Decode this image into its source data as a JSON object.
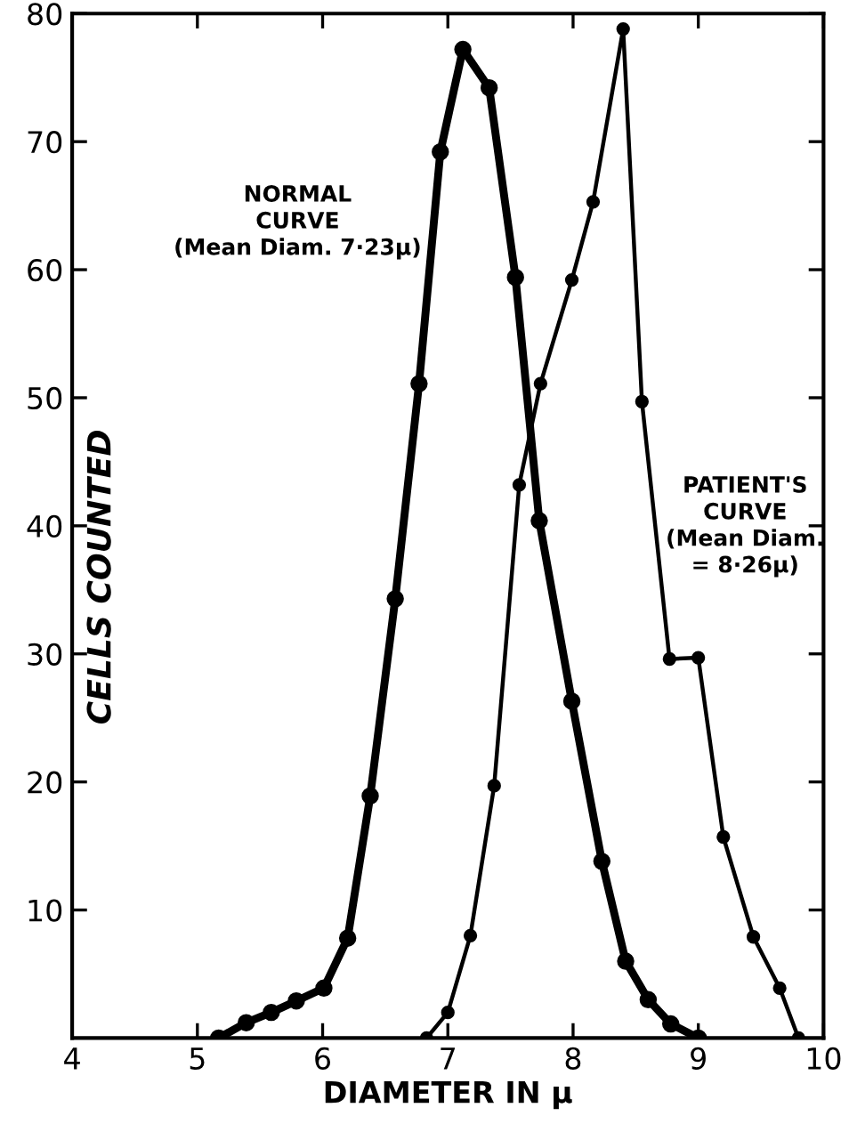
{
  "chart_data": {
    "type": "line",
    "xlabel": "DIAMETER IN μ",
    "ylabel": "CELLS COUNTED",
    "xlim": [
      4,
      10
    ],
    "xticks": [
      4,
      5,
      6,
      7,
      8,
      9,
      10
    ],
    "ylim": [
      0,
      80
    ],
    "yticks": [
      10,
      20,
      30,
      40,
      50,
      60,
      70,
      80
    ],
    "grid": false,
    "legend": false,
    "marker": "circle",
    "line_style": "solid",
    "series": [
      {
        "color": "#000000",
        "x": [
          5.17,
          5.39,
          5.59,
          5.79,
          6.01,
          6.2,
          6.38,
          6.58,
          6.77,
          6.94,
          7.12,
          7.33,
          7.54,
          7.73,
          7.99,
          8.23,
          8.42,
          8.6,
          8.78,
          9.0
        ],
        "values": [
          0,
          1.2,
          2,
          2.9,
          3.9,
          7.8,
          18.9,
          34.3,
          51.1,
          69.2,
          77.2,
          74.2,
          59.4,
          40.4,
          26.3,
          13.8,
          6,
          3,
          1.1,
          0
        ]
      },
      {
        "color": "#000000",
        "x": [
          6.83,
          7.0,
          7.18,
          7.37,
          7.57,
          7.74,
          7.99,
          8.16,
          8.4,
          8.55,
          8.77,
          9.0,
          9.2,
          9.44,
          9.65,
          9.8
        ],
        "values": [
          0,
          2,
          8,
          19.7,
          43.2,
          51.1,
          59.2,
          65.3,
          78.8,
          49.7,
          29.6,
          29.7,
          15.7,
          7.9,
          3.9,
          0
        ]
      }
    ],
    "annotations": [
      "NORMAL\nCURVE\n(Mean Diam. 7·23μ)",
      "PATIENT'S\nCURVE\n(Mean Diam.\n= 8·26μ)"
    ]
  }
}
